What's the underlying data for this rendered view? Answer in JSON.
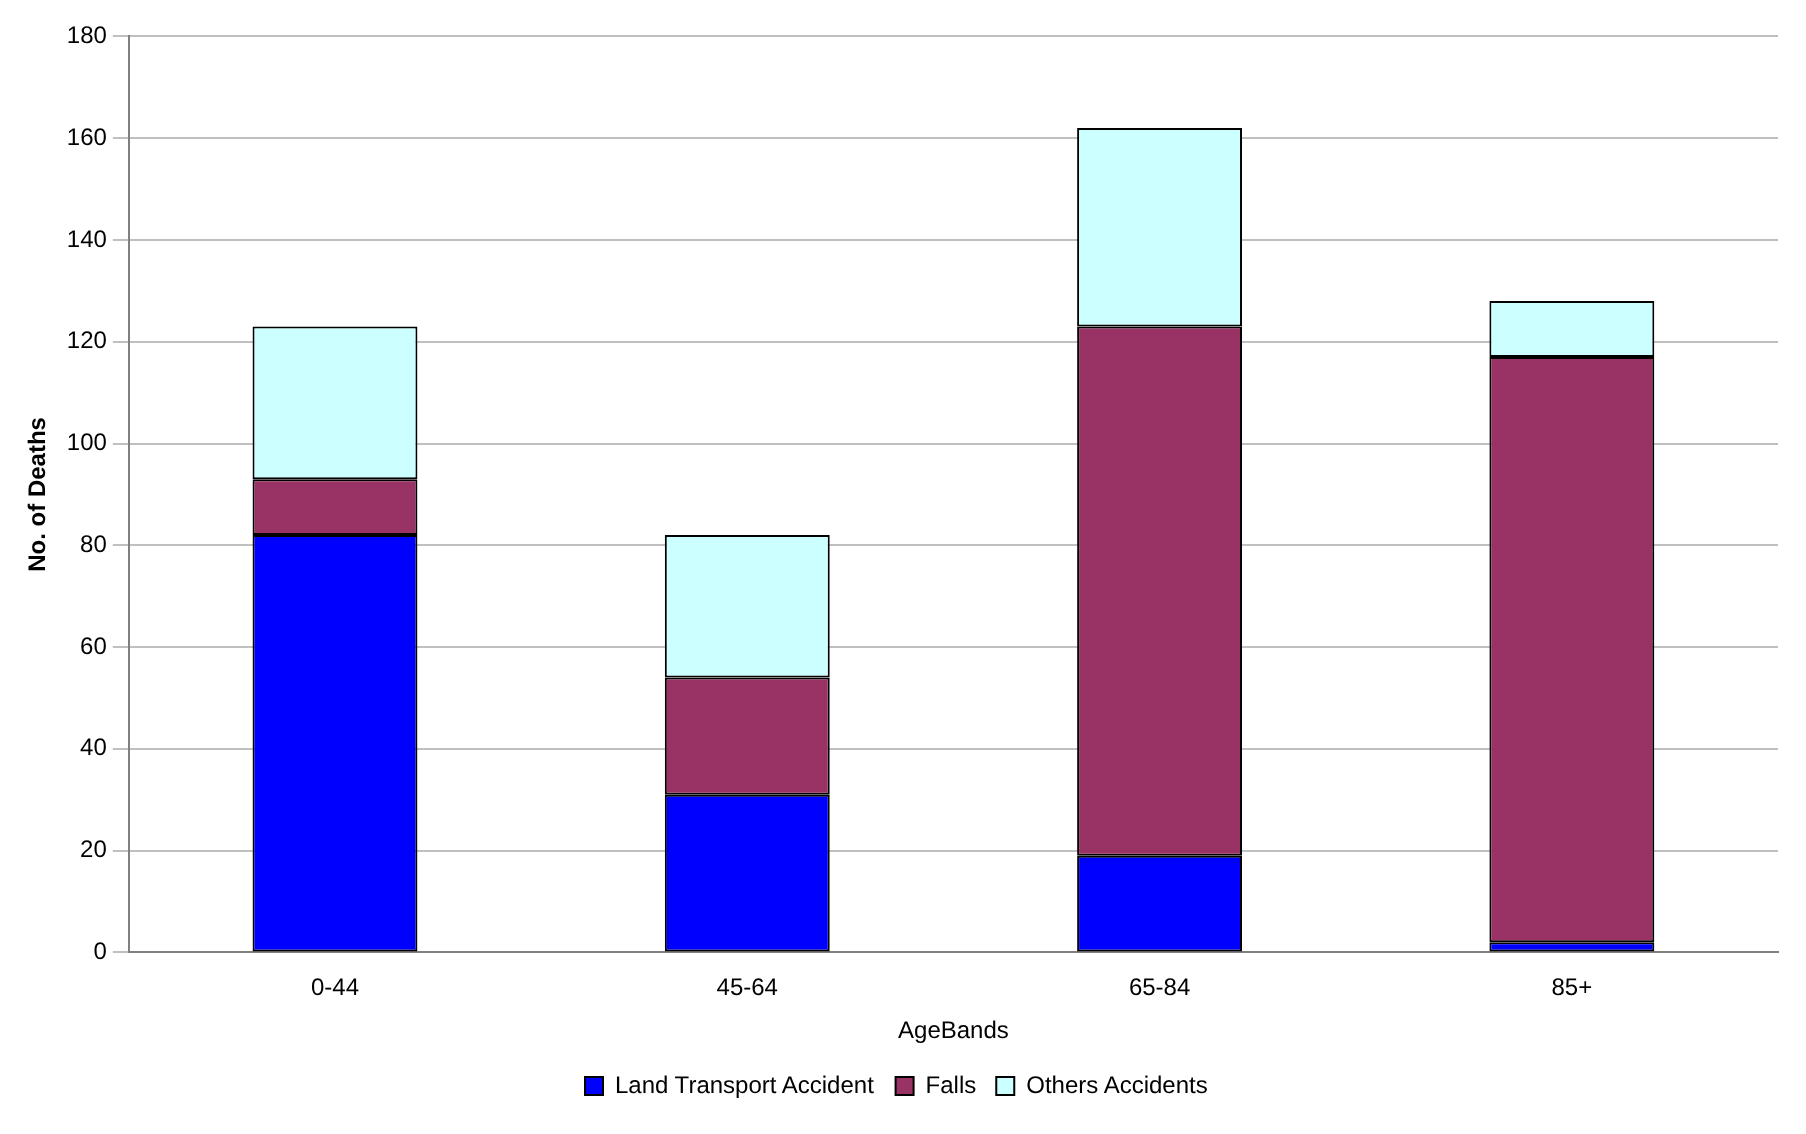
{
  "chart_data": {
    "type": "bar",
    "stacked": true,
    "xlabel": "AgeBands",
    "ylabel": "No. of Deaths",
    "categories": [
      "0-44",
      "45-64",
      "65-84",
      "85+"
    ],
    "series": [
      {
        "name": "Land Transport Accident",
        "color": "#0000ff",
        "values": [
          82,
          31,
          19,
          2
        ]
      },
      {
        "name": "Falls",
        "color": "#993366",
        "values": [
          11,
          23,
          104,
          115
        ]
      },
      {
        "name": "Others Accidents",
        "color": "#ccffff",
        "values": [
          30,
          28,
          39,
          11
        ]
      }
    ],
    "ylim": [
      0,
      180
    ],
    "yticks": [
      0,
      20,
      40,
      60,
      80,
      100,
      120,
      140,
      160,
      180
    ],
    "grid": "y",
    "legend": "bottom"
  }
}
